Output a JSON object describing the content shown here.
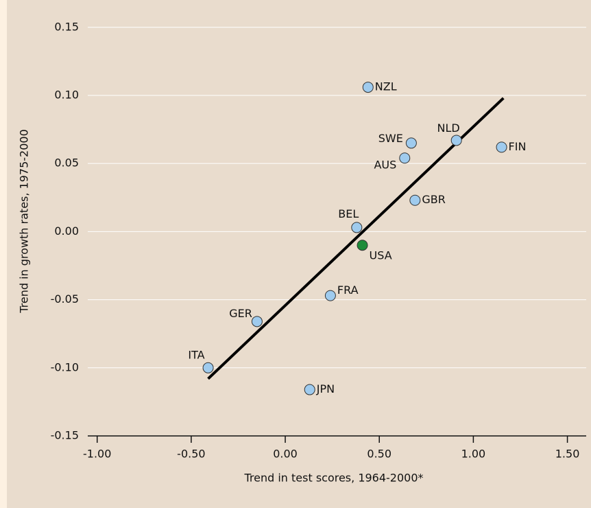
{
  "chart_data": {
    "type": "scatter",
    "x_label": "Trend in test scores, 1964-2000*",
    "y_label": "Trend in growth rates, 1975-2000",
    "labels": [
      "NZL",
      "SWE",
      "NLD",
      "FIN",
      "AUS",
      "GBR",
      "BEL",
      "USA",
      "FRA",
      "GER",
      "ITA",
      "JPN"
    ],
    "x": [
      0.44,
      0.67,
      0.91,
      1.15,
      0.635,
      0.69,
      0.38,
      0.41,
      0.24,
      -0.15,
      -0.41,
      0.13
    ],
    "y": [
      0.106,
      0.065,
      0.067,
      0.062,
      0.054,
      0.023,
      0.003,
      -0.01,
      -0.047,
      -0.066,
      -0.1,
      -0.116
    ],
    "colors": [
      "#9fcbee",
      "#9fcbee",
      "#9fcbee",
      "#9fcbee",
      "#9fcbee",
      "#9fcbee",
      "#9fcbee",
      "#1e8c3a",
      "#9fcbee",
      "#9fcbee",
      "#9fcbee",
      "#9fcbee"
    ],
    "trend_line": {
      "x": [
        -0.41,
        1.16
      ],
      "y": [
        -0.108,
        0.098
      ],
      "color": "#000000"
    },
    "xlim": [
      -1.05,
      1.6
    ],
    "ylim": [
      -0.15,
      0.165
    ],
    "xticks": [
      {
        "value": -1,
        "label": "-1.00"
      },
      {
        "value": -0.5,
        "label": "-0.50"
      },
      {
        "value": 0,
        "label": "0.00"
      },
      {
        "value": 0.5,
        "label": "0.50"
      },
      {
        "value": 1,
        "label": "1.00"
      },
      {
        "value": 1.5,
        "label": "1.50"
      }
    ],
    "yticks": [
      {
        "value": -0.15,
        "label": "-0.15"
      },
      {
        "value": -0.1,
        "label": "-0.10"
      },
      {
        "value": -0.05,
        "label": "-0.05"
      },
      {
        "value": 0,
        "label": "0.00"
      },
      {
        "value": 0.05,
        "label": "0.05"
      },
      {
        "value": 0.1,
        "label": "0.10"
      },
      {
        "value": 0.15,
        "label": "0.15"
      }
    ],
    "grid": true
  }
}
